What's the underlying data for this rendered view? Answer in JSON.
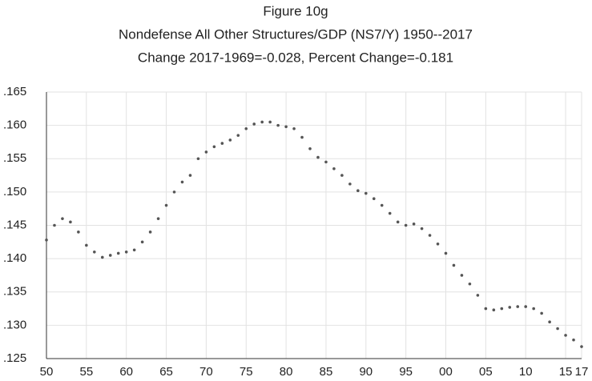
{
  "chart_data": {
    "type": "dotline",
    "title": "Figure 10g",
    "subtitle": "Nondefense All Other Structures/GDP (NS7/Y) 1950--2017",
    "annotation": "Change 2017-1969=-0.028, Percent Change=-0.181",
    "x": [
      1950,
      1951,
      1952,
      1953,
      1954,
      1955,
      1956,
      1957,
      1958,
      1959,
      1960,
      1961,
      1962,
      1963,
      1964,
      1965,
      1966,
      1967,
      1968,
      1969,
      1970,
      1971,
      1972,
      1973,
      1974,
      1975,
      1976,
      1977,
      1978,
      1979,
      1980,
      1981,
      1982,
      1983,
      1984,
      1985,
      1986,
      1987,
      1988,
      1989,
      1990,
      1991,
      1992,
      1993,
      1994,
      1995,
      1996,
      1997,
      1998,
      1999,
      2000,
      2001,
      2002,
      2003,
      2004,
      2005,
      2006,
      2007,
      2008,
      2009,
      2010,
      2011,
      2012,
      2013,
      2014,
      2015,
      2016,
      2017
    ],
    "series": [
      {
        "color": "#555555",
        "values": [
          0.1428,
          0.145,
          0.146,
          0.1455,
          0.144,
          0.142,
          0.141,
          0.1402,
          0.1405,
          0.1408,
          0.141,
          0.1413,
          0.1425,
          0.144,
          0.146,
          0.148,
          0.15,
          0.1515,
          0.1525,
          0.155,
          0.156,
          0.1568,
          0.1573,
          0.1578,
          0.1585,
          0.1595,
          0.1602,
          0.1605,
          0.1605,
          0.16,
          0.1598,
          0.1595,
          0.1582,
          0.1565,
          0.1552,
          0.1545,
          0.1535,
          0.1525,
          0.1512,
          0.1502,
          0.1498,
          0.149,
          0.148,
          0.1468,
          0.1455,
          0.145,
          0.1452,
          0.1445,
          0.1435,
          0.1422,
          0.1408,
          0.139,
          0.1375,
          0.1362,
          0.1345,
          0.1325,
          0.1323,
          0.1325,
          0.1327,
          0.1328,
          0.1328,
          0.1325,
          0.1318,
          0.1305,
          0.1295,
          0.1285,
          0.1278,
          0.1268
        ]
      }
    ],
    "xlim": [
      1950,
      2017
    ],
    "xticks": [
      {
        "value": 1950,
        "label": "50"
      },
      {
        "value": 1955,
        "label": "55"
      },
      {
        "value": 1960,
        "label": "60"
      },
      {
        "value": 1965,
        "label": "65"
      },
      {
        "value": 1970,
        "label": "70"
      },
      {
        "value": 1975,
        "label": "75"
      },
      {
        "value": 1980,
        "label": "80"
      },
      {
        "value": 1985,
        "label": "85"
      },
      {
        "value": 1990,
        "label": "90"
      },
      {
        "value": 1995,
        "label": "95"
      },
      {
        "value": 2000,
        "label": "00"
      },
      {
        "value": 2005,
        "label": "05"
      },
      {
        "value": 2010,
        "label": "10"
      },
      {
        "value": 2015,
        "label": "15"
      },
      {
        "value": 2017,
        "label": "17"
      }
    ],
    "ylim": [
      0.125,
      0.165
    ],
    "yticks": [
      {
        "value": 0.125,
        "label": ".125"
      },
      {
        "value": 0.13,
        "label": ".130"
      },
      {
        "value": 0.135,
        "label": ".135"
      },
      {
        "value": 0.14,
        "label": ".140"
      },
      {
        "value": 0.145,
        "label": ".145"
      },
      {
        "value": 0.15,
        "label": ".150"
      },
      {
        "value": 0.155,
        "label": ".155"
      },
      {
        "value": 0.16,
        "label": ".160"
      },
      {
        "value": 0.165,
        "label": ".165"
      }
    ],
    "grid": true
  }
}
